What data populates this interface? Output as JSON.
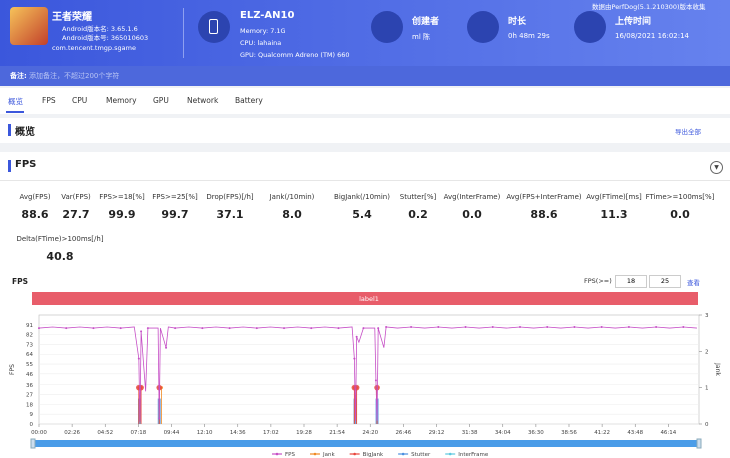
{
  "header": {
    "app_name": "王者荣耀",
    "version_name": "Android版本名: 3.65.1.6",
    "version_code": "Android版本号: 365010603",
    "package": "com.tencent.tmgp.sgame",
    "device": "ELZ-AN10",
    "memory": "Memory: 7.1G",
    "cpu": "CPU: lahaina",
    "gpu": "GPU: Qualcomm Adreno (TM) 660",
    "creator_label": "创建者",
    "creator": "ml 陈",
    "duration_label": "时长",
    "duration": "0h 48m 29s",
    "upload_label": "上传时间",
    "upload_time": "16/08/2021 16:02:14",
    "collector": "数据由PerfDog(5.1.210300)版本收集",
    "remark_label": "备注:",
    "remark_placeholder": "添加备注，不超过200个字符"
  },
  "tabs": [
    "概览",
    "FPS",
    "CPU",
    "Memory",
    "GPU",
    "Network",
    "Battery"
  ],
  "overview": {
    "title": "概览",
    "export": "导出全部"
  },
  "fps_section": {
    "title": "FPS",
    "stats": [
      {
        "label": "Avg(FPS)",
        "value": "88.6"
      },
      {
        "label": "Var(FPS)",
        "value": "27.7"
      },
      {
        "label": "FPS>=18[%]",
        "value": "99.9"
      },
      {
        "label": "FPS>=25[%]",
        "value": "99.7"
      },
      {
        "label": "Drop(FPS)[/h]",
        "value": "37.1"
      },
      {
        "label": "Jank(/10min)",
        "value": "8.0"
      },
      {
        "label": "BigJank(/10min)",
        "value": "5.4"
      },
      {
        "label": "Stutter[%]",
        "value": "0.2"
      },
      {
        "label": "Avg(InterFrame)",
        "value": "0.0"
      },
      {
        "label": "Avg(FPS+InterFrame)",
        "value": "88.6"
      },
      {
        "label": "Avg(FTime)[ms]",
        "value": "11.3"
      },
      {
        "label": "FTime>=100ms[%]",
        "value": "0.0"
      },
      {
        "label": "Delta(FTime)>100ms[/h]",
        "value": "40.8"
      }
    ],
    "controls": {
      "threshold_label": "FPS(>=)",
      "threshold_1": "18",
      "threshold_2": "25",
      "view": "查看"
    }
  },
  "chart_data": {
    "type": "line",
    "title": "FPS",
    "ylabel": "FPS",
    "y2label": "Jank",
    "annotation": {
      "label": "label1",
      "x_range": [
        0,
        2909
      ]
    },
    "xlim": [
      0,
      2909
    ],
    "xticks": [
      {
        "value": 0,
        "label": "00:00"
      },
      {
        "value": 146,
        "label": "02:26"
      },
      {
        "value": 292,
        "label": "04:52"
      },
      {
        "value": 438,
        "label": "07:18"
      },
      {
        "value": 584,
        "label": "09:44"
      },
      {
        "value": 730,
        "label": "12:10"
      },
      {
        "value": 876,
        "label": "14:36"
      },
      {
        "value": 1022,
        "label": "17:02"
      },
      {
        "value": 1168,
        "label": "19:28"
      },
      {
        "value": 1314,
        "label": "21:54"
      },
      {
        "value": 1460,
        "label": "24:20"
      },
      {
        "value": 1606,
        "label": "26:46"
      },
      {
        "value": 1752,
        "label": "29:12"
      },
      {
        "value": 1898,
        "label": "31:38"
      },
      {
        "value": 2044,
        "label": "34:04"
      },
      {
        "value": 2190,
        "label": "36:30"
      },
      {
        "value": 2336,
        "label": "38:56"
      },
      {
        "value": 2482,
        "label": "41:22"
      },
      {
        "value": 2628,
        "label": "43:48"
      },
      {
        "value": 2774,
        "label": "46:14"
      }
    ],
    "ylim": [
      0,
      100
    ],
    "yticks": [
      0,
      9,
      18,
      27,
      36,
      46,
      55,
      64,
      73,
      82,
      91
    ],
    "y2lim": [
      0,
      3
    ],
    "y2ticks": [
      0,
      1,
      2,
      3
    ],
    "grid": true,
    "series": [
      {
        "name": "FPS",
        "color": "#c64fc6",
        "kind": "line",
        "x": [
          0,
          60,
          120,
          180,
          240,
          300,
          360,
          420,
          440,
          445,
          450,
          470,
          480,
          525,
          530,
          535,
          560,
          570,
          600,
          660,
          720,
          780,
          840,
          900,
          960,
          1020,
          1080,
          1140,
          1200,
          1260,
          1320,
          1380,
          1390,
          1395,
          1400,
          1410,
          1430,
          1480,
          1485,
          1490,
          1495,
          1520,
          1530,
          1580,
          1640,
          1700,
          1760,
          1820,
          1880,
          1940,
          2000,
          2060,
          2120,
          2180,
          2240,
          2300,
          2360,
          2420,
          2480,
          2540,
          2600,
          2660,
          2720,
          2780,
          2840,
          2900
        ],
        "values": [
          88,
          89,
          88,
          89,
          88,
          89,
          88,
          89,
          60,
          2,
          85,
          30,
          88,
          88,
          5,
          88,
          70,
          89,
          88,
          89,
          88,
          89,
          88,
          89,
          88,
          89,
          88,
          89,
          88,
          89,
          88,
          89,
          60,
          3,
          80,
          75,
          88,
          88,
          40,
          3,
          88,
          70,
          89,
          88,
          89,
          88,
          89,
          88,
          89,
          88,
          89,
          88,
          89,
          88,
          89,
          88,
          89,
          88,
          89,
          88,
          89,
          88,
          89,
          88,
          89,
          88
        ]
      },
      {
        "name": "Jank",
        "color": "#f08a24",
        "kind": "point",
        "axis": "y2",
        "x": [
          440,
          450,
          530,
          540,
          1390,
          1400,
          1490
        ],
        "values": [
          1,
          1,
          1,
          1,
          1,
          1,
          1
        ]
      },
      {
        "name": "BigJank",
        "color": "#e8463c",
        "kind": "point",
        "axis": "y2",
        "x": [
          440,
          450,
          530,
          1390,
          1400,
          1490
        ],
        "values": [
          1,
          1,
          1,
          1,
          1,
          1
        ]
      },
      {
        "name": "Stutter",
        "color": "#4a8fe0",
        "kind": "bar",
        "axis": "y2",
        "x": [
          443,
          530,
          1393,
          1490
        ],
        "values": [
          0.7,
          0.7,
          0.7,
          0.7
        ]
      },
      {
        "name": "InterFrame",
        "color": "#5bc8de",
        "kind": "none"
      }
    ]
  }
}
